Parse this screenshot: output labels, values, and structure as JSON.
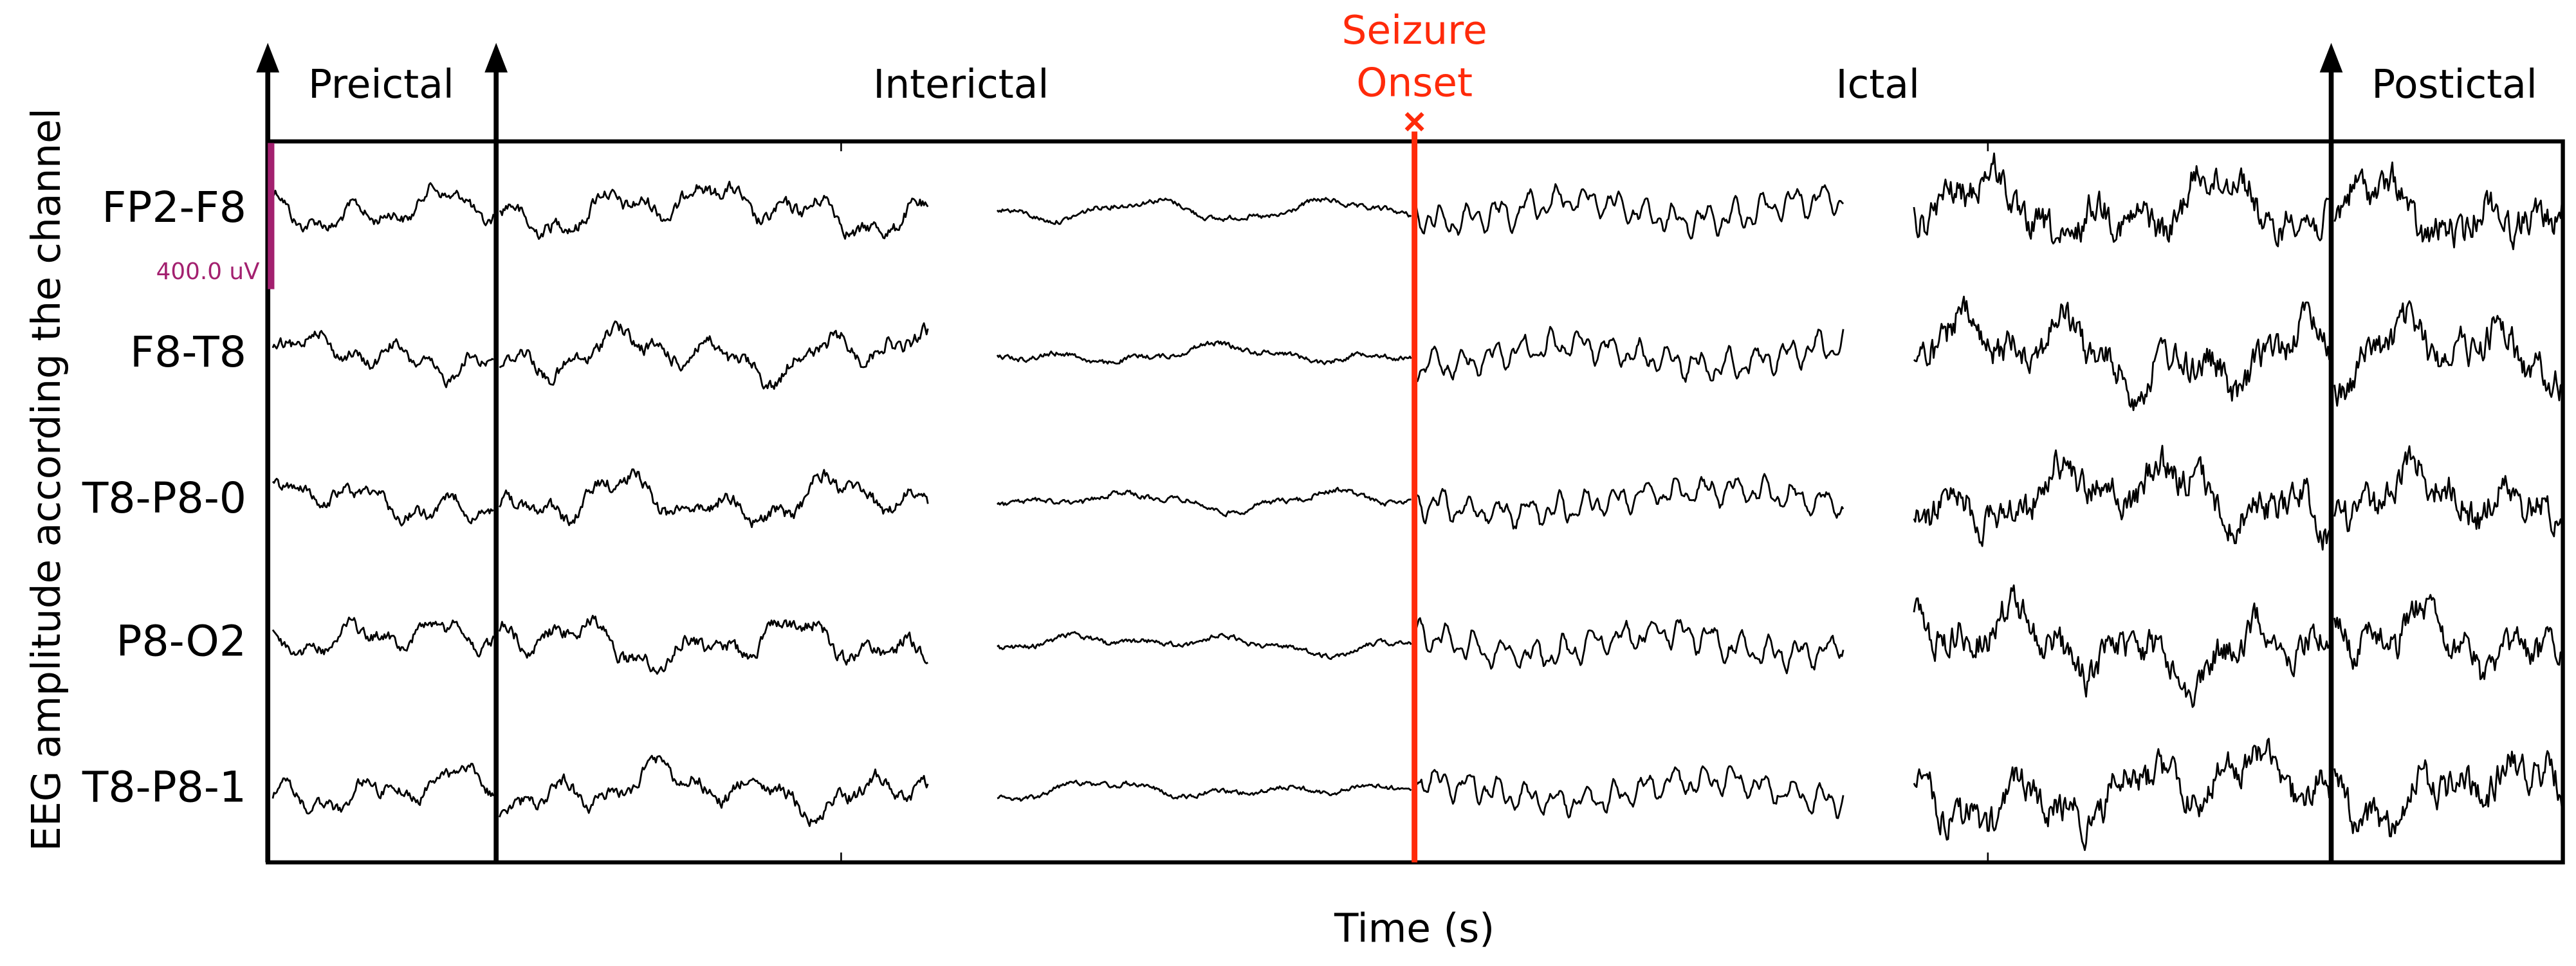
{
  "figure": {
    "phases": [
      "Preictal",
      "Interictal",
      "Ictal",
      "Postictal"
    ],
    "onset_label": [
      "Seizure",
      "Onset"
    ],
    "channels": [
      "FP2-F8",
      "F8-T8",
      "T8-P8-0",
      "P8-O2",
      "T8-P8-1"
    ],
    "scale_label": "400.0 uV",
    "y_label": "EEG amplitude according the channel",
    "x_label": "Time (s)"
  }
}
